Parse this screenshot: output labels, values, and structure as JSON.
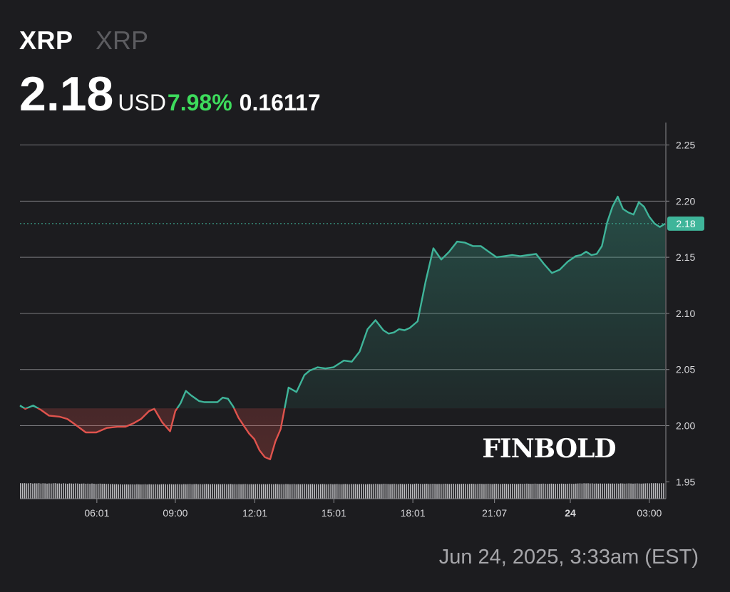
{
  "header": {
    "symbol": "XRP",
    "name": "XRP",
    "price": "2.18",
    "currency": "USD",
    "change_percent": "7.98%",
    "change_abs": "0.16117"
  },
  "watermark": "FINBOLD",
  "footer": {
    "date": "Jun 24, 2025, 3:33am (EST)"
  },
  "colors": {
    "background": "#1c1c1f",
    "up": "#3fb59a",
    "down": "#e0534d",
    "positive_text": "#3ddc5c",
    "grid": "#c8c8cc",
    "volume": "#c9c9cc"
  },
  "chart_data": {
    "type": "line",
    "y_axis_position": "right",
    "ylim": [
      1.935,
      2.27
    ],
    "y_ticks": [
      2.25,
      2.2,
      2.15,
      2.1,
      2.05,
      2.0,
      1.95
    ],
    "y_tick_labels": [
      "2.25",
      "2.20",
      "2.15",
      "2.10",
      "2.05",
      "2.00",
      "1.95"
    ],
    "x_range": [
      3.1,
      27.6
    ],
    "x_ticks": [
      6.02,
      9.0,
      12.02,
      15.02,
      18.02,
      21.12,
      24.0,
      27.0
    ],
    "x_tick_labels": [
      "06:01",
      "09:00",
      "12:01",
      "15:01",
      "18:01",
      "21:07",
      "24",
      "03:00"
    ],
    "baseline": 2.0155,
    "current_price": 2.18,
    "current_price_label": "2.18",
    "grid": true,
    "series": [
      {
        "x": [
          3.1,
          3.3,
          3.6,
          3.9,
          4.2,
          4.6,
          4.9,
          5.2,
          5.6,
          6.0,
          6.4,
          6.8,
          7.1,
          7.4,
          7.7,
          8.0,
          8.2,
          8.5,
          8.8,
          9.0,
          9.2,
          9.4,
          9.6,
          9.9,
          10.1,
          10.3,
          10.6,
          10.8,
          11.0,
          11.2,
          11.4,
          11.6,
          11.8,
          12.0,
          12.2,
          12.4,
          12.6,
          12.8,
          13.0,
          13.3,
          13.6,
          13.9,
          14.1,
          14.4,
          14.7,
          15.0,
          15.2,
          15.4,
          15.7,
          16.0,
          16.3,
          16.6,
          16.9,
          17.1,
          17.3,
          17.5,
          17.7,
          17.9,
          18.2,
          18.5,
          18.8,
          19.1,
          19.4,
          19.7,
          20.0,
          20.3,
          20.6,
          20.9,
          21.2,
          21.5,
          21.8,
          22.1,
          22.4,
          22.7,
          23.0,
          23.3,
          23.6,
          23.9,
          24.2,
          24.4,
          24.6,
          24.8,
          25.0,
          25.2,
          25.4,
          25.6,
          25.8,
          26.0,
          26.2,
          26.4,
          26.6,
          26.8,
          27.0,
          27.2,
          27.4,
          27.6
        ],
        "values": [
          2.018,
          2.015,
          2.018,
          2.014,
          2.009,
          2.008,
          2.006,
          2.001,
          1.994,
          1.994,
          1.998,
          1.999,
          1.999,
          2.002,
          2.006,
          2.013,
          2.015,
          2.003,
          1.995,
          2.013,
          2.02,
          2.031,
          2.027,
          2.022,
          2.021,
          2.021,
          2.021,
          2.025,
          2.024,
          2.017,
          2.007,
          2.0,
          1.993,
          1.988,
          1.978,
          1.972,
          1.97,
          1.986,
          1.997,
          2.034,
          2.03,
          2.045,
          2.049,
          2.052,
          2.051,
          2.052,
          2.055,
          2.058,
          2.057,
          2.066,
          2.086,
          2.094,
          2.085,
          2.082,
          2.083,
          2.086,
          2.085,
          2.087,
          2.093,
          2.128,
          2.158,
          2.148,
          2.155,
          2.164,
          2.163,
          2.16,
          2.16,
          2.155,
          2.15,
          2.151,
          2.152,
          2.151,
          2.152,
          2.153,
          2.144,
          2.136,
          2.139,
          2.146,
          2.151,
          2.152,
          2.155,
          2.152,
          2.153,
          2.16,
          2.181,
          2.195,
          2.204,
          2.193,
          2.19,
          2.188,
          2.199,
          2.195,
          2.186,
          2.18,
          2.177,
          2.18
        ]
      }
    ],
    "volume": {
      "x_range": [
        3.1,
        27.6
      ],
      "values": [
        0.95,
        0.94,
        0.95,
        0.93,
        0.94,
        0.96,
        0.92,
        0.94,
        0.93,
        0.95,
        0.92,
        0.94,
        0.93,
        0.91,
        0.93,
        0.92,
        0.94,
        0.95,
        0.92,
        0.93,
        0.91,
        0.94,
        0.92,
        0.9,
        0.93,
        0.92,
        0.91,
        0.93,
        0.92,
        0.9,
        0.91,
        0.92,
        0.9,
        0.91,
        0.89,
        0.92,
        0.9,
        0.88,
        0.9,
        0.91,
        0.89,
        0.9,
        0.88,
        0.89,
        0.87,
        0.88,
        0.86,
        0.87,
        0.85,
        0.86,
        0.84,
        0.85,
        0.85,
        0.84,
        0.85,
        0.85,
        0.84,
        0.86,
        0.85,
        0.84,
        0.85,
        0.86,
        0.84,
        0.86,
        0.85,
        0.85,
        0.86,
        0.85,
        0.84,
        0.86,
        0.87,
        0.86,
        0.85,
        0.87,
        0.86,
        0.85,
        0.86,
        0.87,
        0.86,
        0.85,
        0.87,
        0.86,
        0.87,
        0.88,
        0.86,
        0.87,
        0.88,
        0.86,
        0.87,
        0.86,
        0.87,
        0.88,
        0.87,
        0.86,
        0.88,
        0.87,
        0.86,
        0.87,
        0.86,
        0.87,
        0.88,
        0.86,
        0.87,
        0.88,
        0.86,
        0.87,
        0.86,
        0.87,
        0.86,
        0.87,
        0.88,
        0.87,
        0.86,
        0.87,
        0.86,
        0.87,
        0.88,
        0.87,
        0.86,
        0.87,
        0.86,
        0.87,
        0.88,
        0.87,
        0.86,
        0.88,
        0.87,
        0.86,
        0.87,
        0.86,
        0.88,
        0.87,
        0.86,
        0.87,
        0.88,
        0.86,
        0.87,
        0.86,
        0.87,
        0.88,
        0.87,
        0.86,
        0.87,
        0.88,
        0.86,
        0.87,
        0.86,
        0.87,
        0.88,
        0.87,
        0.86,
        0.87,
        0.88,
        0.86,
        0.87,
        0.88,
        0.87,
        0.86,
        0.87,
        0.88,
        0.87,
        0.86,
        0.88,
        0.87,
        0.88,
        0.86,
        0.87,
        0.88,
        0.87,
        0.86,
        0.87,
        0.88,
        0.87,
        0.88,
        0.89,
        0.88,
        0.87,
        0.88,
        0.9,
        0.89,
        0.88,
        0.87,
        0.88,
        0.89,
        0.88,
        0.87,
        0.89,
        0.88,
        0.87,
        0.88,
        0.9,
        0.88,
        0.87,
        0.89,
        0.91,
        0.9,
        0.89,
        0.88,
        0.89,
        0.9,
        0.88,
        0.89,
        0.9,
        0.89,
        0.88,
        0.89,
        0.88,
        0.89,
        0.9,
        0.89,
        0.88,
        0.89,
        0.9,
        0.88,
        0.89,
        0.88,
        0.89,
        0.9,
        0.89,
        0.88,
        0.89,
        0.9,
        0.89,
        0.88,
        0.89,
        0.9,
        0.89,
        0.88,
        0.89,
        0.9,
        0.89,
        0.88,
        0.89,
        0.9,
        0.89,
        0.88,
        0.89,
        0.9,
        0.89,
        0.88,
        0.89,
        0.9,
        0.89,
        0.88,
        0.89,
        0.9,
        0.89,
        0.9,
        0.91,
        0.9,
        0.89,
        0.9,
        0.91,
        0.9,
        0.89,
        0.9,
        0.91,
        0.9,
        0.89,
        0.9,
        0.91,
        0.9,
        0.89,
        0.9,
        0.9,
        0.91,
        0.9,
        0.89,
        0.9,
        0.91,
        0.9,
        0.89,
        0.91,
        0.92,
        0.93,
        0.92,
        0.94,
        0.93,
        0.94,
        0.92,
        0.93,
        0.91,
        0.92,
        0.91,
        0.92,
        0.91,
        0.92,
        0.91,
        0.92,
        0.91,
        0.92,
        0.91,
        0.92,
        0.91,
        0.93,
        0.92,
        0.91,
        0.92,
        0.93,
        0.92,
        0.91,
        0.92,
        0.93,
        0.92,
        0.91,
        0.92,
        0.93,
        0.94,
        0.93,
        0.95,
        0.94,
        0.95,
        0.94,
        0.93,
        0.95,
        0.94
      ]
    }
  }
}
